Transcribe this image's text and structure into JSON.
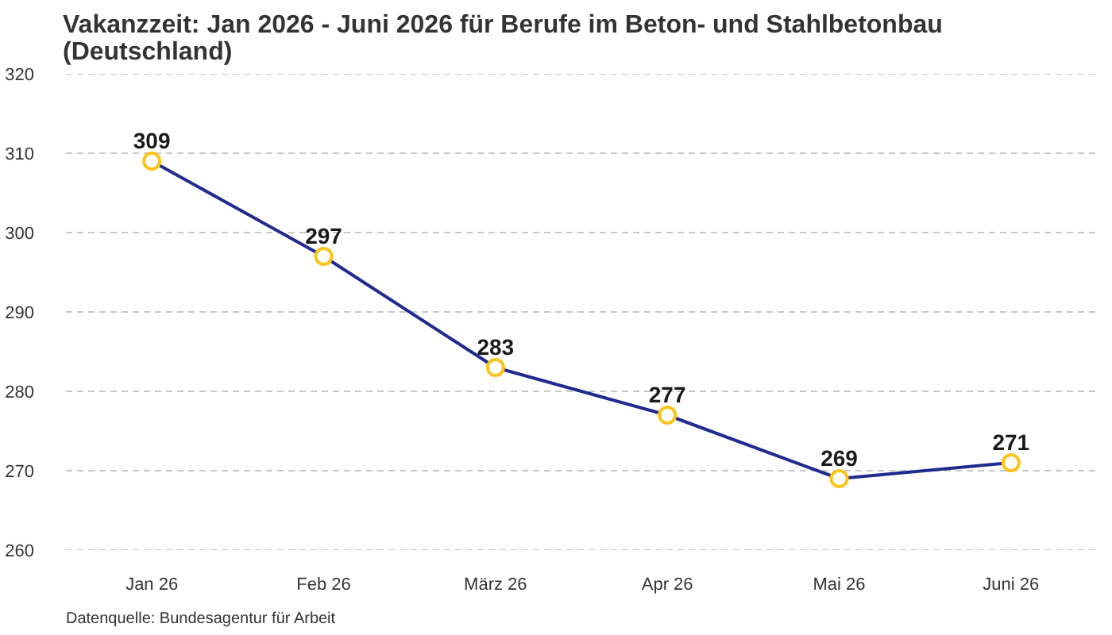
{
  "chart_data": {
    "type": "line",
    "title": "Vakanzzeit: Jan 2026 - Juni 2026 für Berufe im Beton- und Stahlbetonbau (Deutschland)",
    "categories": [
      "Jan 26",
      "Feb 26",
      "März 26",
      "Apr 26",
      "Mai 26",
      "Juni 26"
    ],
    "series": [
      {
        "color": "#1f2b8f",
        "colors": [
          "#fcc419",
          "#fcc419",
          "#fcc419",
          "#fcc419",
          "#fcc419",
          "#fcc419"
        ],
        "values": [
          309,
          297,
          283,
          277,
          269,
          271
        ]
      }
    ],
    "ylim": [
      260,
      320
    ],
    "yticks": [
      260,
      270,
      280,
      290,
      300,
      310,
      320
    ],
    "grid": "y",
    "marker": "circle",
    "line_style": "solid",
    "data_labels": true,
    "annotations": [
      "Datenquelle: Bundesagentur für Arbeit"
    ]
  }
}
